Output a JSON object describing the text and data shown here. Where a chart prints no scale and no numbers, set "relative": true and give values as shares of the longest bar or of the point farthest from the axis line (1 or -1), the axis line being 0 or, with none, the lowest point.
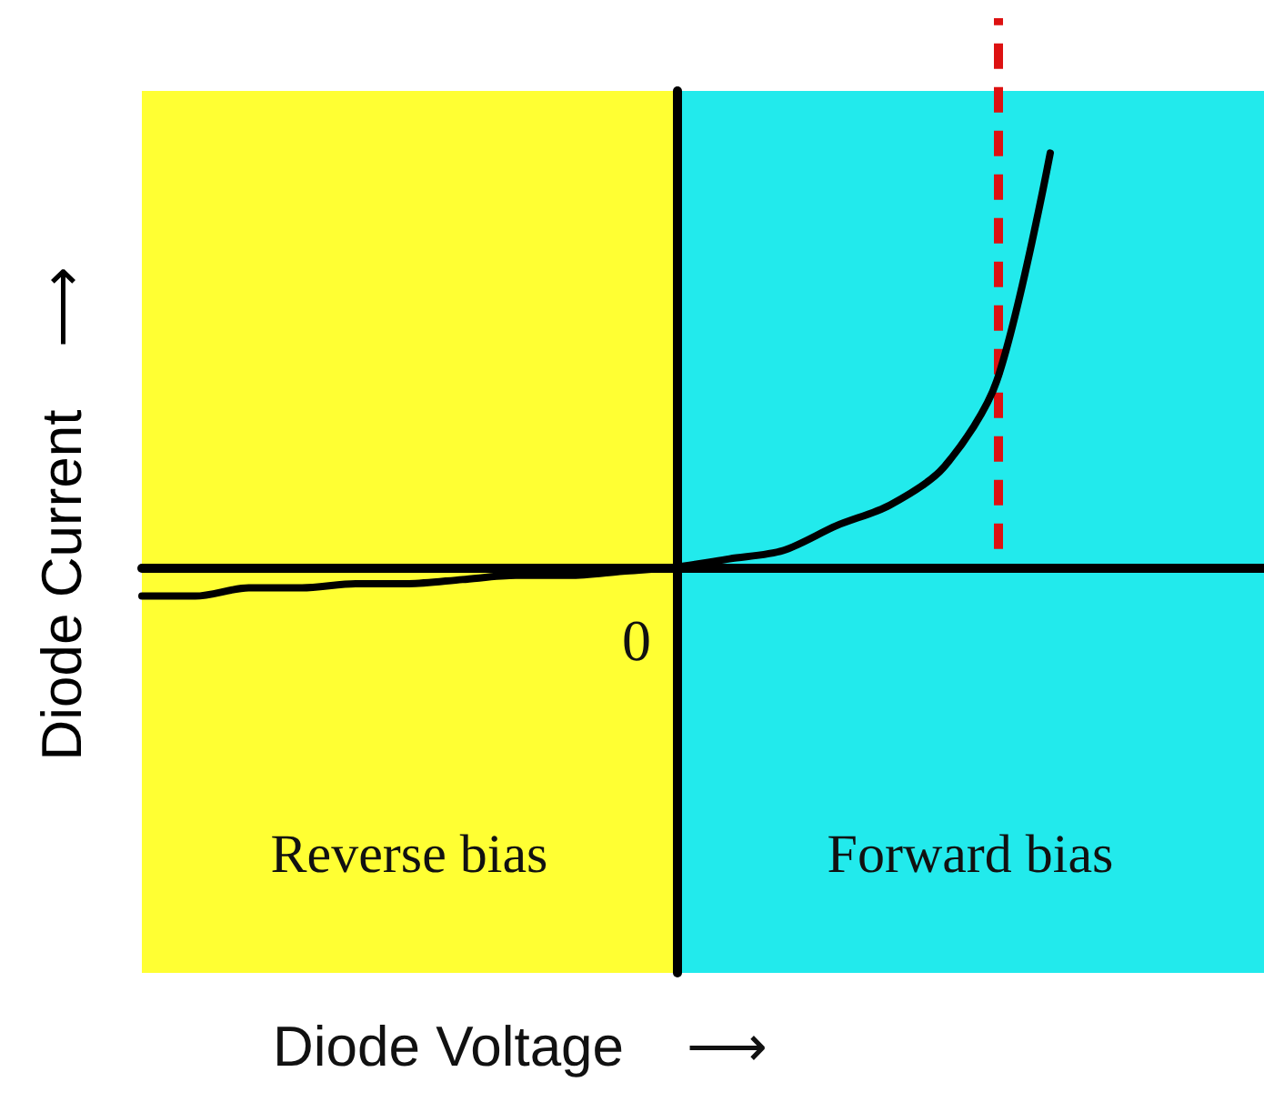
{
  "chart_data": {
    "type": "line",
    "relative": true,
    "ylabel": "Diode Current    ⟶",
    "categories": [
      null,
      null,
      null,
      null,
      null,
      null,
      null,
      null,
      null,
      null,
      null,
      null,
      null,
      null,
      null,
      null,
      null,
      null,
      null,
      null,
      null,
      null
    ],
    "series": [
      {
        "color": "#000000",
        "values": [
          -0.07,
          -0.07,
          -0.05,
          -0.05,
          -0.04,
          -0.04,
          -0.03,
          -0.02,
          -0.02,
          -0.01,
          0,
          0.02,
          0.04,
          0.1,
          0.15,
          0.24,
          0.45,
          1,
          null,
          null,
          null,
          null
        ]
      }
    ],
    "annotations": [
      "0",
      "Reverse bias",
      "Forward bias",
      "Diode Voltage    ⟶"
    ],
    "grid": false,
    "marker": "none",
    "line_style": "solid"
  }
}
